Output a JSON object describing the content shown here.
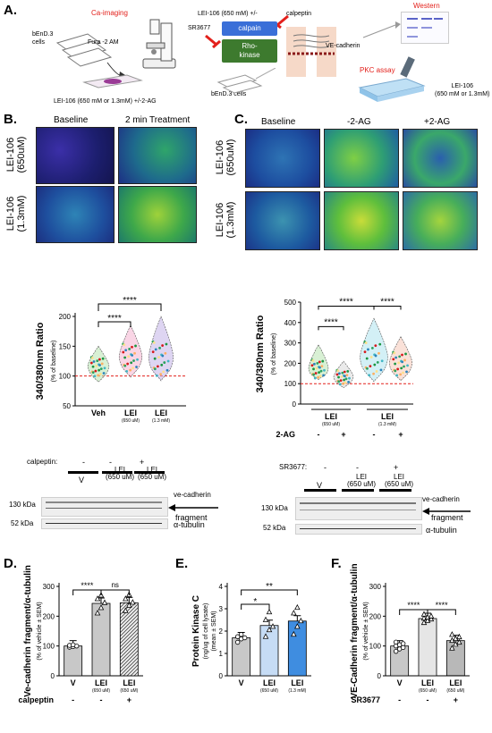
{
  "panelA": {
    "label": "A.",
    "ca_imaging": "Ca-imaging",
    "cells_left": "bEnD.3\ncells",
    "fura": "Fura -2 AM",
    "treatment_left": "LEI-106 (650 mM or 1.3mM) +/-2-AG",
    "lei_top": "LEI-106 (650 mM) +/-",
    "calpeptin": "calpeptin",
    "calpain": "calpain",
    "sr3677": "SR3677",
    "rho_kinase": "Rho-\nkinase",
    "ve_cadherin": "VE-cadherin",
    "cells_right": "bEnD.3 cells",
    "western": "Western",
    "pkc_assay": "PKC assay",
    "lei_right": "LEI-106\n(650 mM or 1.3mM)"
  },
  "panelB": {
    "label": "B.",
    "col1": "Baseline",
    "col2": "2 min Treatment",
    "row1": "LEI-106\n(650uM)",
    "row2": "LEI-106\n(1.3mM)",
    "ylabel": "340/380nm Ratio",
    "ylabel_sub": "(% of baseline)",
    "yticks": [
      "50",
      "100",
      "150",
      "200"
    ],
    "cats": [
      "Veh",
      "LEI",
      "LEI"
    ],
    "cat_sub": [
      "",
      "(650 uM)",
      "(1.3 mM)"
    ],
    "sig1": "****",
    "sig2": "****"
  },
  "panelC": {
    "label": "C.",
    "col1": "Baseline",
    "col2": "-2-AG",
    "col3": "+2-AG",
    "row1": "LEI-106\n(650uM)",
    "row2": "LEI-106\n(1.3mM)",
    "ylabel": "340/380nm Ratio",
    "ylabel_sub": "(% of baseline)",
    "yticks": [
      "0",
      "100",
      "200",
      "300",
      "400",
      "500"
    ],
    "grp1": "LEI",
    "grp1_sub": "(650 uM)",
    "grp2": "LEI",
    "grp2_sub": "(1.3 mM)",
    "twoag": "2-AG",
    "signs": [
      "-",
      "+",
      "-",
      "+"
    ],
    "sig1": "****",
    "sig2": "****",
    "sig3": "****"
  },
  "blotLeft": {
    "calpeptin": "calpeptin:",
    "signs": [
      "-",
      "-",
      "+"
    ],
    "lanes": [
      "V",
      "LEI\n(650 uM)",
      "LEI\n(650 uM)"
    ],
    "kda130": "130 kDa",
    "kda52": "52 kDa",
    "vecad": "ve-cadherin",
    "fragment": "fragment",
    "tubulin": "α-tubulin"
  },
  "blotRight": {
    "sr": "SR3677:",
    "signs": [
      "-",
      "-",
      "+"
    ],
    "lanes": [
      "V",
      "LEI\n(650 uM)",
      "LEI\n(650 uM)"
    ],
    "kda130": "130 kDa",
    "kda52": "52 kDa",
    "vecad": "ve-cadherin",
    "fragment": "fragment",
    "tubulin": "α-tubulin"
  },
  "chart_data": [
    {
      "panel": "D.",
      "type": "bar",
      "ylabel": "Ve-cadherin fragment/α-tubulin",
      "ylabel_sub": "(% of vehicle ± SEM)",
      "ylim": [
        0,
        300
      ],
      "yticks": [
        "0",
        "100",
        "200",
        "300"
      ],
      "categories": [
        "V",
        "LEI",
        "LEI"
      ],
      "cat_sub": [
        "",
        "(650 uM)",
        "(650 uM)"
      ],
      "values": [
        100,
        243,
        245
      ],
      "points": [
        [
          96,
          98,
          100,
          102,
          104
        ],
        [
          210,
          228,
          245,
          258,
          270
        ],
        [
          218,
          236,
          246,
          258,
          272
        ]
      ],
      "row_label": "calpeptin",
      "row_signs": [
        "-",
        "-",
        "+"
      ],
      "sig": [
        "****",
        "ns"
      ]
    },
    {
      "panel": "E.",
      "type": "bar",
      "ylabel": "Protein Kinase C",
      "ylabel_sub": "(ng/ug of cell lysate)",
      "ylabel_sub2": "(mean ± SEM)",
      "ylim": [
        0,
        4
      ],
      "yticks": [
        "0",
        "1",
        "2",
        "3",
        "4"
      ],
      "categories": [
        "V",
        "LEI",
        "LEI"
      ],
      "cat_sub": [
        "",
        "(650 uM)",
        "(1.3 mM)"
      ],
      "values": [
        1.7,
        2.25,
        2.45
      ],
      "points": [
        [
          1.5,
          1.65,
          1.7,
          1.75,
          1.85
        ],
        [
          1.75,
          2.05,
          2.2,
          2.5,
          2.85
        ],
        [
          1.85,
          2.2,
          2.45,
          2.8,
          3.05
        ]
      ],
      "sig": [
        "*",
        "**"
      ]
    },
    {
      "panel": "F.",
      "type": "bar",
      "ylabel": "VE-Cadherin fragment/α-tubulin",
      "ylabel_sub": "(% of vehicle ± SEM)",
      "ylim": [
        0,
        300
      ],
      "yticks": [
        "0",
        "100",
        "200",
        "300"
      ],
      "categories": [
        "V",
        "LEI",
        "LEI"
      ],
      "cat_sub": [
        "",
        "(650 uM)",
        "(650 uM)"
      ],
      "values": [
        100,
        192,
        118
      ],
      "points": [
        [
          82,
          90,
          95,
          100,
          104,
          108,
          113
        ],
        [
          178,
          185,
          190,
          193,
          196,
          200,
          206
        ],
        [
          92,
          105,
          112,
          118,
          124,
          130,
          138
        ]
      ],
      "row_label": "SR3677",
      "row_signs": [
        "-",
        "-",
        "+"
      ],
      "sig": [
        "****",
        "****"
      ]
    }
  ],
  "colors": {
    "red": "#e3201b",
    "barGray": "#c8c8c8",
    "barBlue1": "#c6dcf5",
    "barBlue2": "#3f8de0",
    "rhoGreen": "#3d7a2e",
    "calpainBlue": "#3a6fd8"
  }
}
